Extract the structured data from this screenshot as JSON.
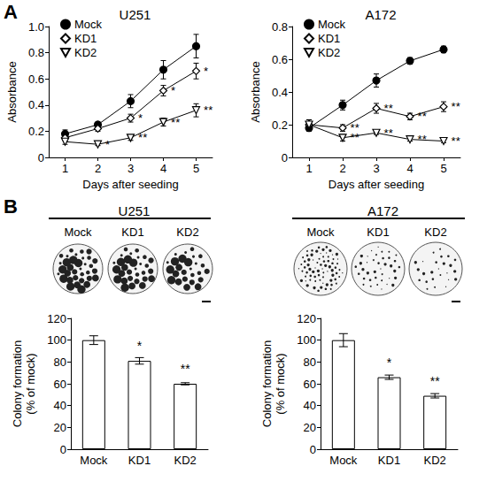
{
  "panel_labels": [
    "A",
    "B"
  ],
  "chart_data": [
    {
      "type": "line",
      "title": "U251",
      "x_label": "Days after seeding",
      "y_label": "Absorbance",
      "categories": [
        "1",
        "2",
        "3",
        "4",
        "5"
      ],
      "ylim": [
        0,
        1
      ],
      "yticks": [
        0,
        0.2,
        0.4,
        0.6,
        0.8,
        {
          "value": 1,
          "label": "1.0"
        }
      ],
      "grid": false,
      "legend": "upper left",
      "series": [
        {
          "name": "Mock",
          "color": "#000000",
          "marker": "circle",
          "values": [
            0.18,
            0.25,
            0.43,
            0.67,
            0.85
          ],
          "errors": [
            0.03,
            0.02,
            0.05,
            0.07,
            0.09
          ],
          "annotations": [
            null,
            null,
            null,
            null,
            null
          ]
        },
        {
          "name": "KD1",
          "color": "#000000",
          "marker": "open_diamond",
          "values": [
            0.15,
            0.22,
            0.3,
            0.51,
            0.66
          ],
          "errors": [
            0.02,
            0.02,
            0.03,
            0.04,
            0.06
          ],
          "annotations": [
            null,
            null,
            "*",
            "*",
            "*"
          ]
        },
        {
          "name": "KD2",
          "color": "#000000",
          "marker": "open_triangle_down",
          "values": [
            0.12,
            0.1,
            0.15,
            0.27,
            0.36
          ],
          "errors": [
            0.02,
            0.01,
            0.02,
            0.03,
            0.05
          ],
          "annotations": [
            null,
            "*",
            "**",
            "**",
            "**"
          ]
        }
      ]
    },
    {
      "type": "line",
      "title": "A172",
      "x_label": "Days after seeding",
      "y_label": "Absorbance",
      "categories": [
        "1",
        "2",
        "3",
        "4",
        "5"
      ],
      "ylim": [
        0,
        0.8
      ],
      "yticks": [
        0,
        0.2,
        0.4,
        0.6,
        0.8
      ],
      "grid": false,
      "legend": "upper left",
      "series": [
        {
          "name": "Mock",
          "color": "#000000",
          "marker": "circle",
          "values": [
            0.18,
            0.32,
            0.47,
            0.59,
            0.66
          ],
          "errors": [
            0.02,
            0.03,
            0.04,
            0.02,
            0.02
          ],
          "annotations": [
            null,
            null,
            null,
            null,
            null
          ]
        },
        {
          "name": "KD1",
          "color": "#000000",
          "marker": "open_diamond",
          "values": [
            0.2,
            0.18,
            0.3,
            0.25,
            0.31
          ],
          "errors": [
            0.03,
            0.02,
            0.03,
            0.02,
            0.03
          ],
          "annotations": [
            null,
            "**",
            "**",
            "**",
            "**"
          ]
        },
        {
          "name": "KD2",
          "color": "#000000",
          "marker": "open_triangle_down",
          "values": [
            0.2,
            0.12,
            0.15,
            0.11,
            0.1
          ],
          "errors": [
            0.03,
            0.02,
            0.01,
            0.01,
            0.01
          ],
          "annotations": [
            null,
            "**",
            "**",
            "**",
            "**"
          ]
        }
      ]
    },
    {
      "type": "bar",
      "title": "U251",
      "y_label": "Colony formation\n(% of mock)",
      "image_labels": [
        "Mock",
        "KD1",
        "KD2"
      ],
      "categories": [
        "Mock",
        "KD1",
        "KD2"
      ],
      "values": [
        100,
        81,
        60
      ],
      "errors": [
        4,
        3,
        1
      ],
      "annotations": [
        null,
        "*",
        "**"
      ],
      "color": "#ffffff",
      "ylim": [
        0,
        120
      ],
      "yticks": [
        0,
        20,
        40,
        60,
        80,
        100,
        120
      ],
      "grid": false
    },
    {
      "type": "bar",
      "title": "A172",
      "y_label": "Colony formation\n(% of mock)",
      "image_labels": [
        "Mock",
        "KD1",
        "KD2"
      ],
      "categories": [
        "Mock",
        "KD1",
        "KD2"
      ],
      "values": [
        100,
        66,
        49
      ],
      "errors": [
        6,
        2,
        2
      ],
      "annotations": [
        null,
        "*",
        "**"
      ],
      "color": "#ffffff",
      "ylim": [
        0,
        120
      ],
      "yticks": [
        0,
        20,
        40,
        60,
        80,
        100,
        120
      ],
      "grid": false
    }
  ]
}
